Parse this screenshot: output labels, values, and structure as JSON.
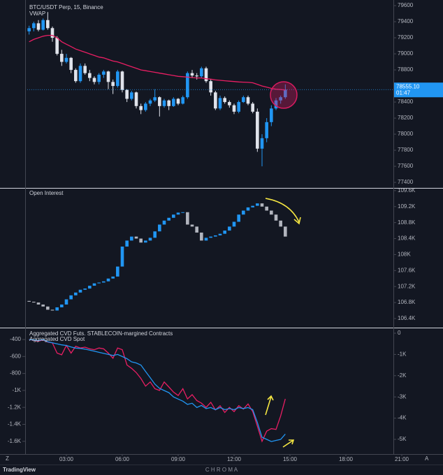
{
  "chart_data": [
    {
      "type": "candlestick",
      "title": "BTC/USDT Perp, 15, Binance",
      "up_color": "#2196f3",
      "down_color": "#e0e3eb",
      "open": [
        79280,
        79320,
        79380,
        79300,
        79420,
        79320,
        79200,
        79000,
        78900,
        78950,
        78800,
        78660,
        78850,
        78760,
        78700,
        78650,
        78740,
        78780,
        78650,
        78600,
        78780,
        78550,
        78440,
        78520,
        78350,
        78300,
        78380,
        78420,
        78460,
        78350,
        78420,
        78350,
        78440,
        78380,
        78460,
        78760,
        78730,
        78720,
        78820,
        78660,
        78520,
        78320,
        78450,
        78400,
        78360,
        78280,
        78400,
        78460,
        78380,
        78280,
        77820,
        77950,
        78150,
        78320,
        78420,
        78460
      ],
      "high": [
        79350,
        79400,
        79420,
        79440,
        79520,
        79340,
        79220,
        79050,
        79000,
        78960,
        78820,
        78880,
        78880,
        78800,
        78720,
        78760,
        78800,
        78790,
        78680,
        78800,
        78790,
        78560,
        78540,
        78530,
        78380,
        78400,
        78440,
        78560,
        78470,
        78440,
        78430,
        78460,
        78450,
        78480,
        78780,
        78800,
        78760,
        78840,
        78840,
        78680,
        78540,
        78480,
        78470,
        78420,
        78380,
        78420,
        78480,
        78480,
        78400,
        78320,
        78000,
        78200,
        78360,
        78450,
        78480,
        78620
      ],
      "low": [
        79240,
        79280,
        79280,
        79290,
        79300,
        79150,
        78980,
        78850,
        78880,
        78760,
        78640,
        78640,
        78740,
        78660,
        78620,
        78620,
        78700,
        78560,
        78500,
        78580,
        78520,
        78400,
        78420,
        78320,
        78250,
        78280,
        78350,
        78400,
        78220,
        78330,
        78300,
        78340,
        78360,
        78370,
        78440,
        78700,
        78680,
        78700,
        78640,
        78480,
        78300,
        78300,
        78380,
        78330,
        78250,
        78260,
        78390,
        78360,
        78260,
        77780,
        77600,
        77900,
        78100,
        78300,
        78380,
        78440
      ],
      "close": [
        79320,
        79380,
        79300,
        79420,
        79320,
        79200,
        79000,
        78900,
        78950,
        78800,
        78660,
        78850,
        78760,
        78700,
        78650,
        78740,
        78780,
        78650,
        78600,
        78780,
        78550,
        78440,
        78520,
        78350,
        78300,
        78380,
        78420,
        78460,
        78350,
        78420,
        78350,
        78440,
        78380,
        78460,
        78760,
        78730,
        78720,
        78820,
        78660,
        78520,
        78320,
        78450,
        78400,
        78360,
        78280,
        78400,
        78460,
        78380,
        78280,
        77820,
        77950,
        78150,
        78320,
        78420,
        78460,
        78555.1
      ],
      "overlays": [
        {
          "name": "VWAP",
          "color": "#e91e63",
          "values": [
            79150,
            79180,
            79200,
            79220,
            79230,
            79230,
            79200,
            79150,
            79120,
            79090,
            79060,
            79040,
            79020,
            79000,
            78980,
            78960,
            78950,
            78930,
            78910,
            78900,
            78880,
            78860,
            78840,
            78820,
            78800,
            78790,
            78780,
            78770,
            78760,
            78750,
            78740,
            78730,
            78720,
            78715,
            78710,
            78705,
            78700,
            78700,
            78690,
            78685,
            78675,
            78670,
            78665,
            78660,
            78655,
            78650,
            78648,
            78645,
            78640,
            78620,
            78600,
            78585,
            78570,
            78560,
            78555,
            78550
          ]
        }
      ],
      "last_price": {
        "value": 78555.1,
        "label": "78555.10"
      },
      "countdown": "01:47",
      "ylim": [
        77340,
        79670
      ],
      "yticks": [
        77400,
        77600,
        77800,
        78000,
        78200,
        78400,
        78800,
        79000,
        79200,
        79400,
        79600
      ]
    },
    {
      "type": "candlestick",
      "title": "Open Interest",
      "up_color": "#2196f3",
      "down_color": "#b2b5be",
      "open": [
        106.84,
        106.82,
        106.8,
        106.75,
        106.7,
        106.62,
        106.6,
        106.68,
        106.75,
        106.88,
        106.98,
        107.05,
        107.12,
        107.15,
        107.22,
        107.28,
        107.3,
        107.33,
        107.4,
        107.45,
        107.7,
        108.2,
        108.35,
        108.45,
        108.4,
        108.3,
        108.35,
        108.42,
        108.58,
        108.75,
        108.85,
        108.92,
        109.0,
        109.05,
        109.06,
        108.75,
        108.7,
        108.55,
        108.35,
        108.42,
        108.45,
        108.48,
        108.52,
        108.6,
        108.7,
        108.82,
        109.0,
        109.1,
        109.18,
        109.22,
        109.28,
        109.2,
        109.1,
        109.0,
        108.85,
        108.7
      ],
      "close": [
        106.82,
        106.8,
        106.75,
        106.7,
        106.62,
        106.6,
        106.68,
        106.75,
        106.88,
        106.98,
        107.05,
        107.12,
        107.15,
        107.22,
        107.28,
        107.3,
        107.33,
        107.4,
        107.45,
        107.7,
        108.2,
        108.35,
        108.45,
        108.4,
        108.3,
        108.35,
        108.42,
        108.58,
        108.75,
        108.85,
        108.92,
        109.0,
        109.05,
        109.06,
        108.75,
        108.7,
        108.55,
        108.35,
        108.42,
        108.45,
        108.48,
        108.52,
        108.6,
        108.7,
        108.82,
        109.0,
        109.1,
        109.18,
        109.22,
        109.28,
        109.2,
        109.1,
        109.0,
        108.85,
        108.7,
        108.45
      ],
      "ylim": [
        106.19,
        109.65
      ],
      "yticks": [
        {
          "value": 106.4,
          "label": "106.4K"
        },
        {
          "value": 106.8,
          "label": "106.8K"
        },
        {
          "value": 107.2,
          "label": "107.2K"
        },
        {
          "value": 107.6,
          "label": "107.6K"
        },
        {
          "value": 108,
          "label": "108K"
        },
        {
          "value": 108.4,
          "label": "108.4K"
        },
        {
          "value": 108.8,
          "label": "108.8K"
        },
        {
          "value": 109.2,
          "label": "109.2K"
        },
        {
          "value": 109.6,
          "label": "109.6K"
        }
      ]
    },
    {
      "type": "line",
      "series": [
        {
          "name": "Aggregated CVD Futs. STABLECOIN-margined Contracts",
          "color": "#e91e63",
          "values": [
            -400,
            -410,
            -420,
            -405,
            -430,
            -440,
            -560,
            -580,
            -470,
            -560,
            -480,
            -500,
            -490,
            -510,
            -520,
            -500,
            -510,
            -560,
            -620,
            -500,
            -520,
            -700,
            -740,
            -790,
            -860,
            -950,
            -900,
            -980,
            -1000,
            -900,
            -960,
            -1020,
            -1060,
            -980,
            -1100,
            -1050,
            -1120,
            -1150,
            -1200,
            -1140,
            -1230,
            -1180,
            -1260,
            -1200,
            -1250,
            -1180,
            -1220,
            -1160,
            -1250,
            -1420,
            -1600,
            -1480,
            -1450,
            -1460,
            -1300,
            -1100
          ]
        },
        {
          "name": "Aggregated CVD Spot",
          "color": "#2196f3",
          "axis": "y2",
          "values": [
            -0.3,
            -0.32,
            -0.35,
            -0.3,
            -0.4,
            -0.45,
            -0.5,
            -0.55,
            -0.58,
            -0.65,
            -0.7,
            -0.72,
            -0.75,
            -0.8,
            -0.85,
            -0.9,
            -0.95,
            -1.0,
            -1.05,
            -1.0,
            -1.1,
            -1.2,
            -1.35,
            -1.4,
            -1.5,
            -1.8,
            -2.1,
            -2.4,
            -2.6,
            -2.7,
            -2.8,
            -3.0,
            -3.1,
            -3.2,
            -3.35,
            -3.3,
            -3.5,
            -3.4,
            -3.55,
            -3.5,
            -3.6,
            -3.5,
            -3.6,
            -3.55,
            -3.6,
            -3.5,
            -3.55,
            -3.5,
            -3.6,
            -4.2,
            -4.9,
            -5.0,
            -5.1,
            -5.05,
            -5.0,
            -4.75
          ]
        }
      ],
      "ylim": [
        -1750,
        -268
      ],
      "yticks": [
        -400,
        -600,
        -800,
        {
          "value": -1000,
          "label": "-1K"
        },
        {
          "value": -1200,
          "label": "-1.2K"
        },
        {
          "value": -1400,
          "label": "-1.4K"
        },
        {
          "value": -1600,
          "label": "-1.6K"
        }
      ],
      "y2lim": [
        -5.69,
        0.23
      ],
      "y2ticks": [
        0,
        {
          "value": -1,
          "label": "-1K"
        },
        {
          "value": -2,
          "label": "-2K"
        },
        {
          "value": -3,
          "label": "-3K"
        },
        {
          "value": -4,
          "label": "-4K"
        },
        {
          "value": -5,
          "label": "-5K"
        }
      ],
      "x": [
        "01:00",
        "01:15",
        "01:30",
        "01:45",
        "02:00",
        "02:15",
        "02:30",
        "02:45",
        "03:00",
        "03:15",
        "03:30",
        "03:45",
        "04:00",
        "04:15",
        "04:30",
        "04:45",
        "05:00",
        "05:15",
        "05:30",
        "05:45",
        "06:00",
        "06:15",
        "06:30",
        "06:45",
        "07:00",
        "07:15",
        "07:30",
        "07:45",
        "08:00",
        "08:15",
        "08:30",
        "08:45",
        "09:00",
        "09:15",
        "09:30",
        "09:45",
        "10:00",
        "10:15",
        "10:30",
        "10:45",
        "11:00",
        "11:15",
        "11:30",
        "11:45",
        "12:00",
        "12:15",
        "12:30",
        "12:45",
        "13:00",
        "13:15",
        "13:30",
        "13:45",
        "14:00",
        "14:15",
        "14:30",
        "14:45"
      ],
      "xlim": [
        "00:45",
        "21:45"
      ],
      "xticks": [
        "03:00",
        "06:00",
        "09:00",
        "12:00",
        "15:00",
        "18:00",
        "21:00"
      ]
    }
  ],
  "footer": {
    "left_button": "Z",
    "right_button": "A",
    "logo": "TradingView",
    "brand": "C H R O M A"
  }
}
